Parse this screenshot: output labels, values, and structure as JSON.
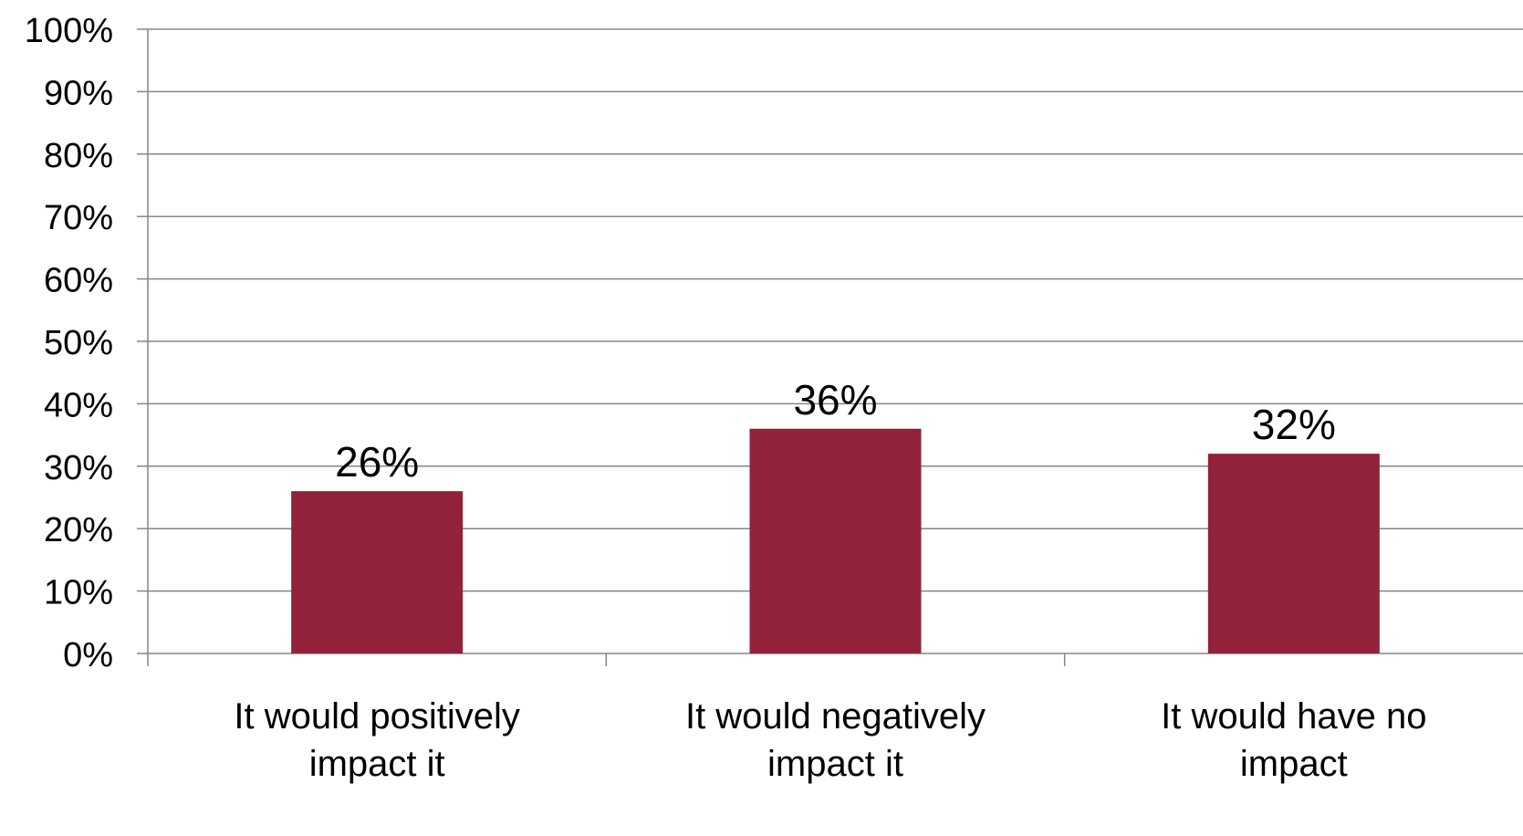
{
  "chart_data": {
    "type": "bar",
    "title": "",
    "xlabel": "",
    "ylabel": "",
    "categories": [
      [
        "It would positively",
        "impact it"
      ],
      [
        "It would negatively",
        "impact it"
      ],
      [
        "It would have no",
        "impact"
      ]
    ],
    "values": [
      26,
      36,
      32
    ],
    "data_labels": [
      "26%",
      "36%",
      "32%"
    ],
    "ylim": [
      0,
      100
    ],
    "yticks": [
      0,
      10,
      20,
      30,
      40,
      50,
      60,
      70,
      80,
      90,
      100
    ],
    "ytick_labels": [
      "0%",
      "10%",
      "20%",
      "30%",
      "40%",
      "50%",
      "60%",
      "70%",
      "80%",
      "90%",
      "100%"
    ],
    "grid": true,
    "legend": "none",
    "colors": {
      "bar": "#92223a",
      "grid": "#868686",
      "axis": "#868686"
    }
  }
}
